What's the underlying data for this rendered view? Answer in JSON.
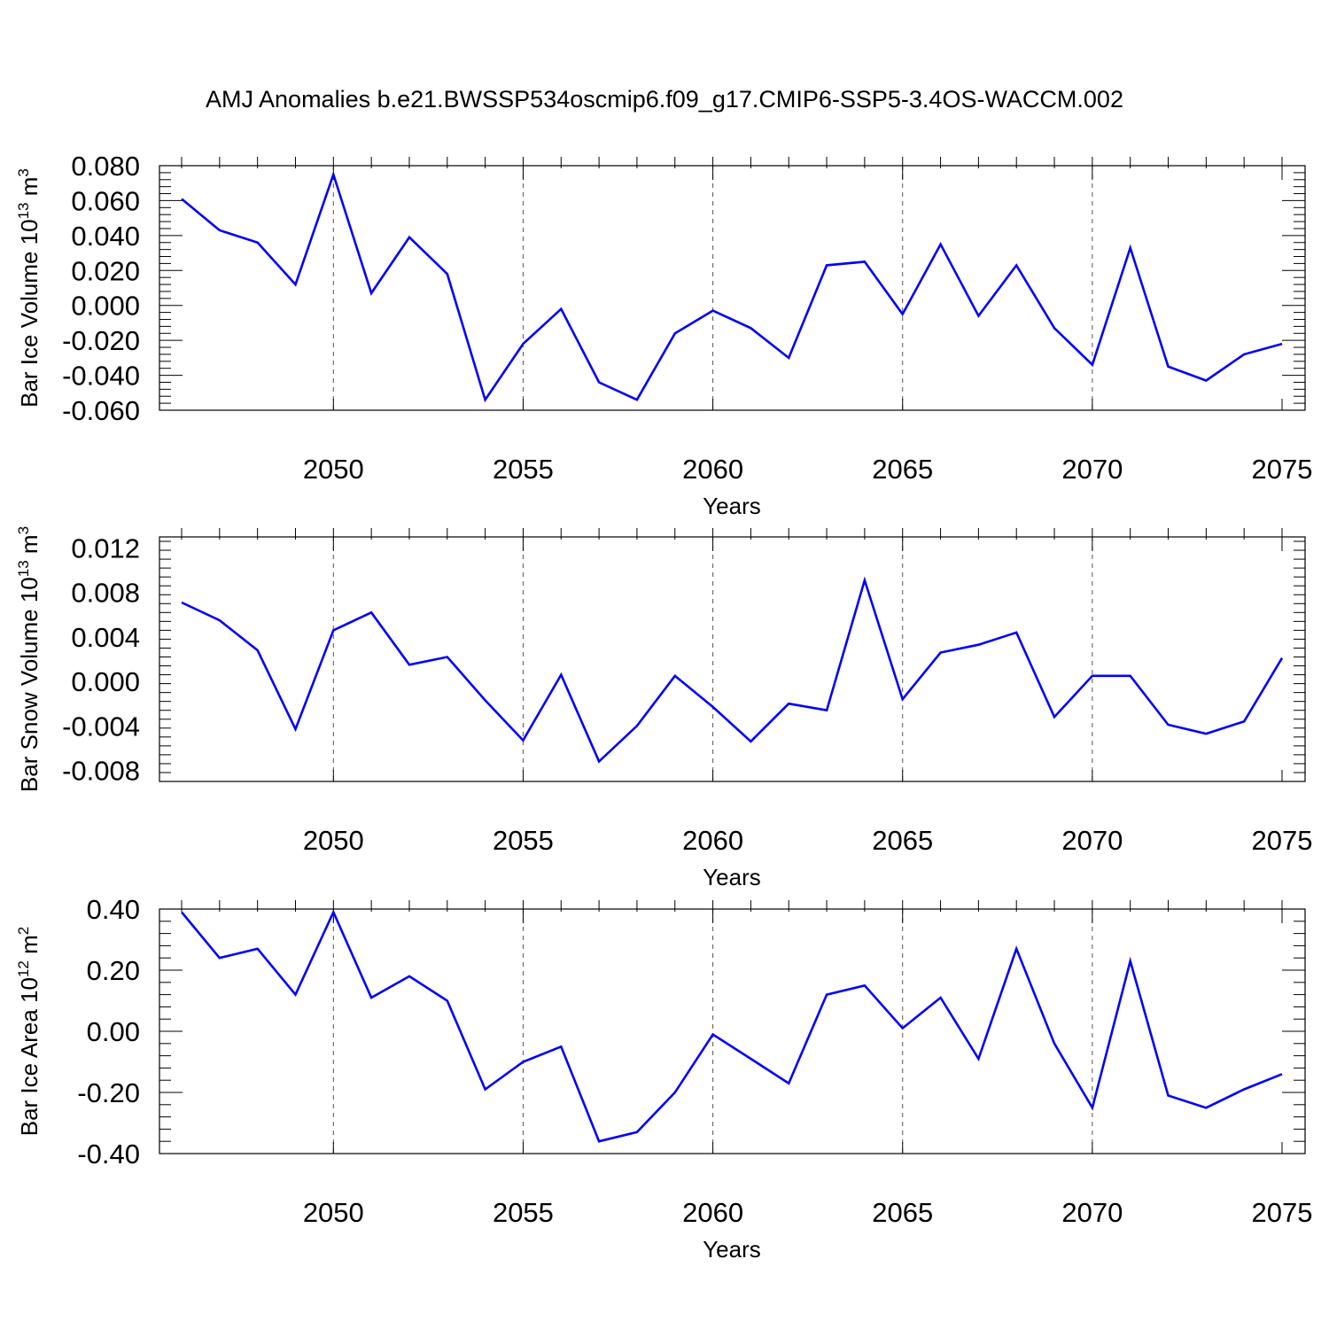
{
  "title": "AMJ Anomalies b.e21.BWSSP534oscmip6.f09_g17.CMIP6-SSP5-3.4OS-WACCM.002",
  "colors": {
    "line": "#0000ff",
    "axis": "#000000",
    "grid": "#555555",
    "background": "#ffffff"
  },
  "chart_data": [
    {
      "type": "line",
      "xlabel": "Years",
      "ylabel": {
        "prefix": "Bar Ice Volume 10",
        "sup": "13",
        "unit": " m",
        "unit_sup": "3"
      },
      "xlim": [
        2046,
        2075
      ],
      "ylim": [
        -0.06,
        0.08
      ],
      "xticks": [
        2050,
        2055,
        2060,
        2065,
        2070,
        2075
      ],
      "yticks": [
        -0.06,
        -0.04,
        -0.02,
        0.0,
        0.02,
        0.04,
        0.06,
        0.08
      ],
      "yticklabels": [
        "-0.060",
        "-0.040",
        "-0.020",
        "0.000",
        "0.020",
        "0.040",
        "0.060",
        "0.080"
      ],
      "grid": "dashed vertical at major x ticks",
      "x": [
        2046,
        2047,
        2048,
        2049,
        2050,
        2051,
        2052,
        2053,
        2054,
        2055,
        2056,
        2057,
        2058,
        2059,
        2060,
        2061,
        2062,
        2063,
        2064,
        2065,
        2066,
        2067,
        2068,
        2069,
        2070,
        2071,
        2072,
        2073,
        2074,
        2075
      ],
      "series": [
        {
          "values": [
            0.061,
            0.043,
            0.036,
            0.012,
            0.075,
            0.007,
            0.039,
            0.018,
            -0.054,
            -0.022,
            -0.002,
            -0.044,
            -0.054,
            -0.016,
            -0.003,
            -0.013,
            -0.03,
            0.023,
            0.025,
            -0.005,
            0.035,
            -0.006,
            0.023,
            -0.013,
            -0.034,
            0.033,
            -0.035,
            -0.043,
            -0.028,
            -0.022
          ]
        }
      ]
    },
    {
      "type": "line",
      "xlabel": "Years",
      "ylabel": {
        "prefix": "Bar Snow Volume 10",
        "sup": "13",
        "unit": " m",
        "unit_sup": "3"
      },
      "xlim": [
        2046,
        2075
      ],
      "ylim": [
        -0.009,
        0.013
      ],
      "xticks": [
        2050,
        2055,
        2060,
        2065,
        2070,
        2075
      ],
      "yticks": [
        -0.008,
        -0.004,
        0.0,
        0.004,
        0.008,
        0.012
      ],
      "yticklabels": [
        "-0.008",
        "-0.004",
        "0.000",
        "0.004",
        "0.008",
        "0.012"
      ],
      "grid": "dashed vertical at major x ticks",
      "x": [
        2046,
        2047,
        2048,
        2049,
        2050,
        2051,
        2052,
        2053,
        2054,
        2055,
        2056,
        2057,
        2058,
        2059,
        2060,
        2061,
        2062,
        2063,
        2064,
        2065,
        2066,
        2067,
        2068,
        2069,
        2070,
        2071,
        2072,
        2073,
        2074,
        2075
      ],
      "series": [
        {
          "values": [
            0.0071,
            0.0055,
            0.0028,
            -0.0043,
            0.0046,
            0.0062,
            0.0015,
            0.0022,
            -0.0017,
            -0.0053,
            0.0006,
            -0.0072,
            -0.004,
            0.0005,
            -0.0023,
            -0.0054,
            -0.002,
            -0.0026,
            0.0091,
            -0.0016,
            0.0026,
            0.0033,
            0.0044,
            -0.0032,
            0.0005,
            0.0005,
            -0.0039,
            -0.0047,
            -0.0036,
            0.0021
          ]
        }
      ]
    },
    {
      "type": "line",
      "xlabel": "Years",
      "ylabel": {
        "prefix": "Bar Ice Area 10",
        "sup": "12",
        "unit": " m",
        "unit_sup": "2"
      },
      "xlim": [
        2046,
        2075
      ],
      "ylim": [
        -0.4,
        0.4
      ],
      "xticks": [
        2050,
        2055,
        2060,
        2065,
        2070,
        2075
      ],
      "yticks": [
        -0.4,
        -0.2,
        0.0,
        0.2,
        0.4
      ],
      "yticklabels": [
        "-0.40",
        "-0.20",
        "0.00",
        "0.20",
        "0.40"
      ],
      "grid": "dashed vertical at major x ticks",
      "x": [
        2046,
        2047,
        2048,
        2049,
        2050,
        2051,
        2052,
        2053,
        2054,
        2055,
        2056,
        2057,
        2058,
        2059,
        2060,
        2061,
        2062,
        2063,
        2064,
        2065,
        2066,
        2067,
        2068,
        2069,
        2070,
        2071,
        2072,
        2073,
        2074,
        2075
      ],
      "series": [
        {
          "values": [
            0.39,
            0.24,
            0.27,
            0.12,
            0.39,
            0.11,
            0.18,
            0.1,
            -0.19,
            -0.1,
            -0.05,
            -0.36,
            -0.33,
            -0.2,
            -0.01,
            -0.09,
            -0.17,
            0.12,
            0.15,
            0.01,
            0.11,
            -0.09,
            0.27,
            -0.04,
            -0.25,
            0.23,
            -0.21,
            -0.25,
            -0.19,
            -0.14
          ]
        }
      ]
    }
  ]
}
